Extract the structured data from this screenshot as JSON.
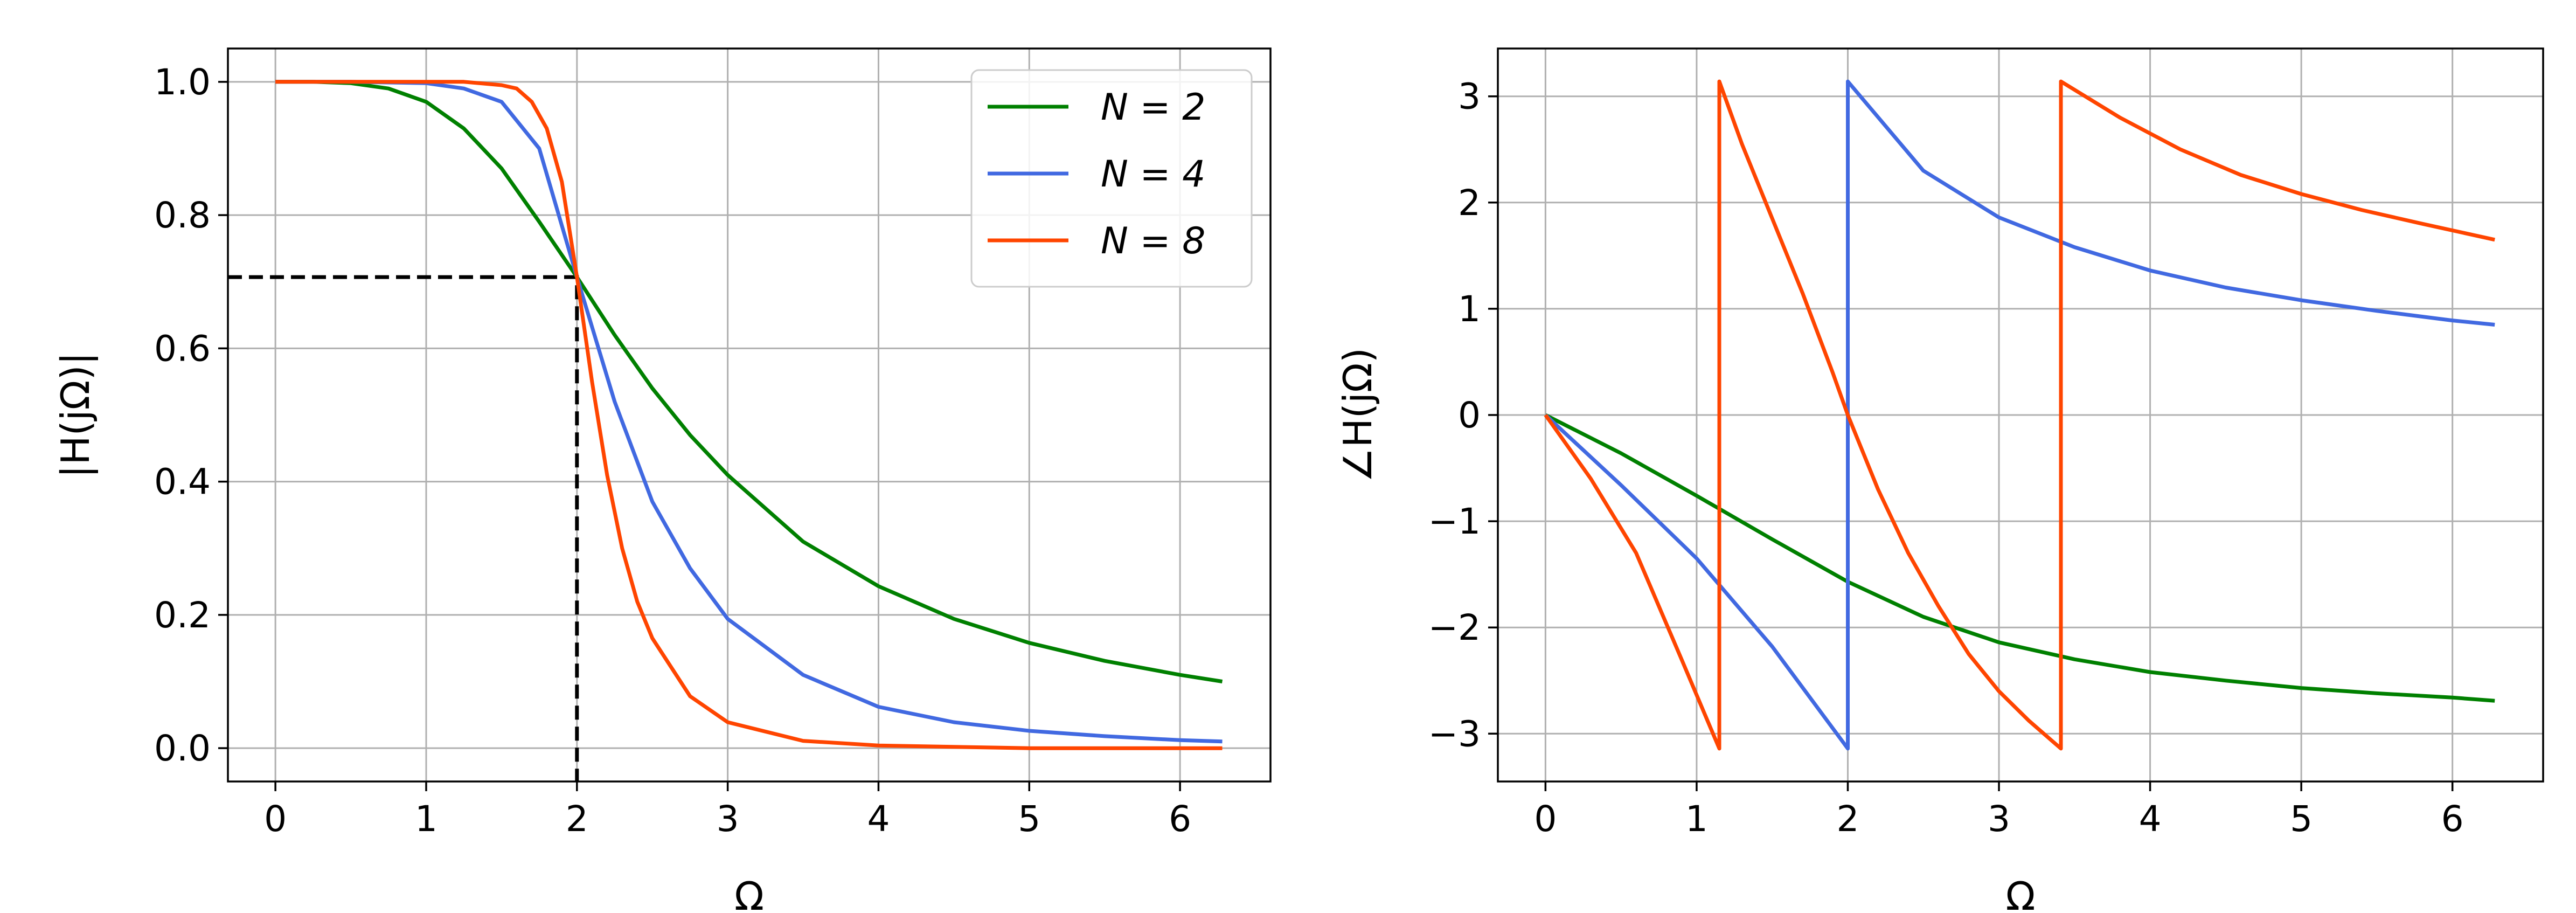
{
  "chart_data": [
    {
      "type": "line",
      "title": "",
      "xlabel": "Ω",
      "ylabel": "|H(jΩ)|",
      "xlim": [
        -0.315,
        6.6
      ],
      "ylim": [
        -0.05,
        1.05
      ],
      "xticks": [
        0,
        1,
        2,
        3,
        4,
        5,
        6
      ],
      "yticks": [
        0.0,
        0.2,
        0.4,
        0.6,
        0.8,
        1.0
      ],
      "xtick_labels": [
        "0",
        "1",
        "2",
        "3",
        "4",
        "5",
        "6"
      ],
      "ytick_labels": [
        "0.0",
        "0.2",
        "0.4",
        "0.6",
        "0.8",
        "1.0"
      ],
      "grid": true,
      "legend_position": "top-right",
      "series": [
        {
          "name": "N = 2",
          "color": "#008000",
          "x": [
            0,
            0.25,
            0.5,
            0.75,
            1.0,
            1.25,
            1.5,
            1.75,
            2.0,
            2.25,
            2.5,
            2.75,
            3.0,
            3.5,
            4.0,
            4.5,
            5.0,
            5.5,
            6.0,
            6.28
          ],
          "y": [
            1.0,
            1.0,
            0.998,
            0.99,
            0.97,
            0.93,
            0.87,
            0.79,
            0.707,
            0.62,
            0.54,
            0.47,
            0.41,
            0.31,
            0.243,
            0.194,
            0.158,
            0.131,
            0.11,
            0.1
          ]
        },
        {
          "name": "N = 4",
          "color": "#4169E1",
          "x": [
            0,
            0.5,
            1.0,
            1.25,
            1.5,
            1.75,
            2.0,
            2.25,
            2.5,
            2.75,
            3.0,
            3.5,
            4.0,
            4.5,
            5.0,
            5.5,
            6.0,
            6.28
          ],
          "y": [
            1.0,
            1.0,
            0.998,
            0.99,
            0.97,
            0.9,
            0.707,
            0.52,
            0.37,
            0.27,
            0.194,
            0.11,
            0.062,
            0.039,
            0.026,
            0.018,
            0.012,
            0.01
          ]
        },
        {
          "name": "N = 8",
          "color": "#FF4500",
          "x": [
            0,
            0.5,
            1.0,
            1.25,
            1.5,
            1.6,
            1.7,
            1.8,
            1.9,
            2.0,
            2.1,
            2.2,
            2.3,
            2.4,
            2.5,
            2.75,
            3.0,
            3.5,
            4.0,
            5.0,
            6.28
          ],
          "y": [
            1.0,
            1.0,
            1.0,
            1.0,
            0.995,
            0.99,
            0.97,
            0.93,
            0.85,
            0.707,
            0.55,
            0.41,
            0.3,
            0.22,
            0.165,
            0.078,
            0.039,
            0.011,
            0.004,
            0.0,
            0.0
          ]
        }
      ],
      "reference_lines": [
        {
          "style": "dashed",
          "color": "#000000",
          "x": [
            -0.315,
            2.0,
            2.0
          ],
          "y": [
            0.707,
            0.707,
            -0.05
          ]
        }
      ]
    },
    {
      "type": "line",
      "title": "",
      "xlabel": "Ω",
      "ylabel": "∠H(jΩ)",
      "xlim": [
        -0.315,
        6.6
      ],
      "ylim": [
        -3.45,
        3.45
      ],
      "xticks": [
        0,
        1,
        2,
        3,
        4,
        5,
        6
      ],
      "yticks": [
        -3,
        -2,
        -1,
        0,
        1,
        2,
        3
      ],
      "xtick_labels": [
        "0",
        "1",
        "2",
        "3",
        "4",
        "5",
        "6"
      ],
      "ytick_labels": [
        "−3",
        "−2",
        "−1",
        "0",
        "1",
        "2",
        "3"
      ],
      "grid": true,
      "series": [
        {
          "name": "N = 2",
          "color": "#008000",
          "x": [
            0,
            0.5,
            1.0,
            1.5,
            2.0,
            2.5,
            3.0,
            3.5,
            4.0,
            4.5,
            5.0,
            5.5,
            6.0,
            6.28
          ],
          "y": [
            0,
            -0.36,
            -0.76,
            -1.17,
            -1.57,
            -1.9,
            -2.14,
            -2.3,
            -2.42,
            -2.5,
            -2.57,
            -2.62,
            -2.66,
            -2.69
          ]
        },
        {
          "name": "N = 4",
          "color": "#4169E1",
          "x": [
            0,
            0.5,
            1.0,
            1.5,
            2.0,
            2.0,
            2.5,
            3.0,
            3.5,
            4.0,
            4.5,
            5.0,
            5.5,
            6.0,
            6.28
          ],
          "y": [
            0,
            -0.66,
            -1.35,
            -2.18,
            -3.14,
            3.14,
            2.3,
            1.86,
            1.58,
            1.36,
            1.2,
            1.08,
            0.98,
            0.89,
            0.85
          ]
        },
        {
          "name": "N = 8",
          "color": "#FF4500",
          "x": [
            0,
            0.3,
            0.6,
            0.9,
            1.15,
            1.15,
            1.3,
            1.5,
            1.7,
            1.9,
            2.0,
            2.2,
            2.4,
            2.6,
            2.8,
            3.0,
            3.2,
            3.41,
            3.41,
            3.8,
            4.2,
            4.6,
            5.0,
            5.4,
            5.8,
            6.28
          ],
          "y": [
            0,
            -0.6,
            -1.3,
            -2.3,
            -3.14,
            3.14,
            2.55,
            1.85,
            1.15,
            0.4,
            0.0,
            -0.7,
            -1.3,
            -1.8,
            -2.25,
            -2.6,
            -2.88,
            -3.14,
            3.14,
            2.8,
            2.5,
            2.26,
            2.08,
            1.93,
            1.8,
            1.65
          ]
        }
      ]
    }
  ]
}
